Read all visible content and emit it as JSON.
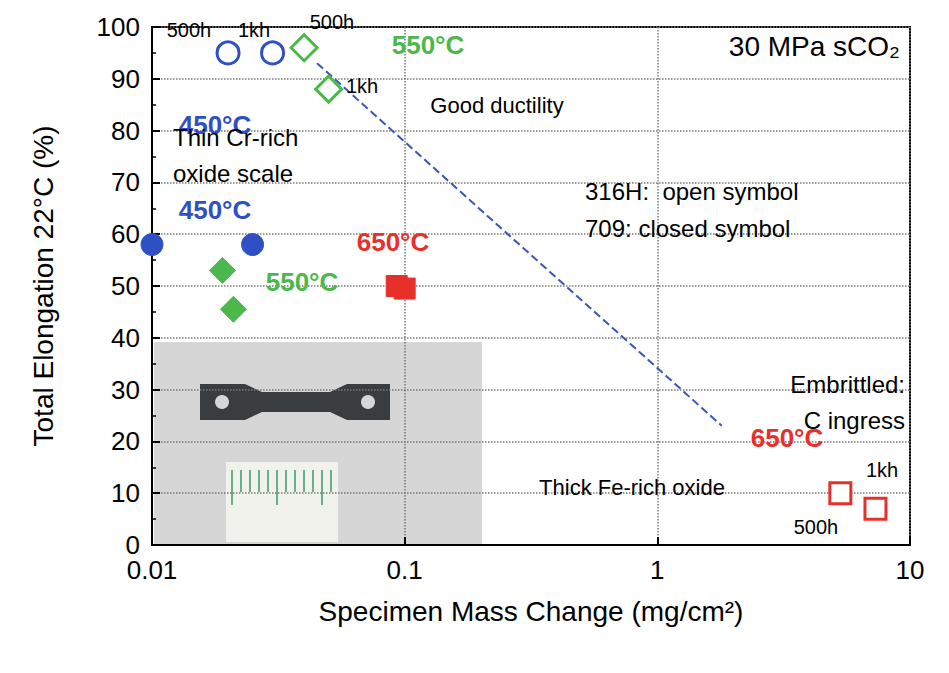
{
  "chart_data": {
    "type": "scatter",
    "x_label": "Specimen Mass Change (mg/cm²)",
    "y_label": "Total Elongation 22°C (%)",
    "log": "x",
    "grid": true,
    "xlim": [
      0.01,
      10
    ],
    "xticks": [
      0.01,
      0.1,
      1,
      10
    ],
    "ylim": [
      0,
      100
    ],
    "yticks": [
      0,
      10,
      20,
      30,
      40,
      50,
      60,
      70,
      80,
      90,
      100
    ],
    "series": [
      {
        "type": "scatter",
        "color": "#2f4fc4",
        "marker": "emptyCircle",
        "x": [
          0.02,
          0.03
        ],
        "values": [
          95,
          95
        ]
      },
      {
        "type": "scatter",
        "color": "#4cb84c",
        "marker": "emptyDiamond",
        "x": [
          0.04,
          0.05
        ],
        "values": [
          96,
          88
        ]
      },
      {
        "type": "scatter",
        "color": "#e8302a",
        "marker": "emptyRect",
        "x": [
          5.3,
          7.3
        ],
        "values": [
          10,
          7
        ]
      },
      {
        "type": "scatter",
        "color": "#2f4fc4",
        "marker": "circle",
        "x": [
          0.01,
          0.025
        ],
        "values": [
          58,
          58
        ]
      },
      {
        "type": "scatter",
        "color": "#4cb84c",
        "marker": "diamond",
        "x": [
          0.019,
          0.021
        ],
        "values": [
          53,
          45.5
        ]
      },
      {
        "type": "scatter",
        "color": "#e8302a",
        "marker": "rect",
        "x": [
          0.093,
          0.1
        ],
        "values": [
          50,
          49.5
        ]
      },
      {
        "type": "line",
        "color": "#3a55b8",
        "line_style": "dashed",
        "x": [
          0.045,
          1.8
        ],
        "values": [
          93,
          23
        ]
      }
    ],
    "annotations": [
      {
        "text": "500h",
        "color": "#000000"
      },
      {
        "text": "1kh",
        "color": "#000000"
      },
      {
        "text": "500h",
        "color": "#000000"
      },
      {
        "text": "1kh",
        "color": "#000000"
      },
      {
        "text": "450°C",
        "color": "#2f4fc4"
      },
      {
        "text": "550°C",
        "color": "#4cb84c"
      },
      {
        "text": "30 MPa sCO₂",
        "color": "#000000"
      },
      {
        "text": "Good ductility",
        "color": "#000000"
      },
      {
        "text": "316H:  open symbol",
        "color": "#000000"
      },
      {
        "text": "709: closed symbol",
        "color": "#000000"
      },
      {
        "text": "Thin Cr-rich\noxide scale",
        "color": "#000000"
      },
      {
        "text": "450°C",
        "color": "#2f4fc4"
      },
      {
        "text": "550°C",
        "color": "#4cb84c"
      },
      {
        "text": "650°C",
        "color": "#e8302a"
      },
      {
        "text": "Embrittled:\nC ingress",
        "color": "#000000"
      },
      {
        "text": "650°C",
        "color": "#e8302a"
      },
      {
        "text": "Thick Fe-rich oxide",
        "color": "#000000"
      },
      {
        "text": "1kh",
        "color": "#000000"
      },
      {
        "text": "500h",
        "color": "#000000"
      }
    ]
  }
}
